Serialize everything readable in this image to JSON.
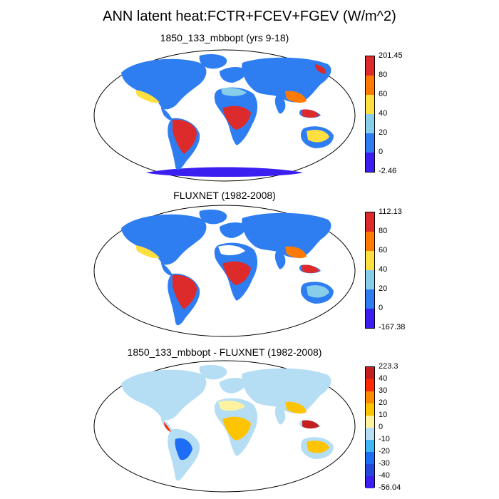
{
  "title": "ANN latent heat:FCTR+FCEV+FGEV (W/m^2)",
  "panels": [
    {
      "title": "1850_133_mbbopt (yrs 9-18)",
      "colorbar": {
        "labels": [
          "201.45",
          "80",
          "60",
          "40",
          "20",
          "0",
          "-2.46"
        ],
        "colors": [
          "#dd2a2a",
          "#ff7a00",
          "#ffe040",
          "#87ceeb",
          "#2e7ef2",
          "#3b1ff0"
        ]
      }
    },
    {
      "title": "FLUXNET (1982-2008)",
      "colorbar": {
        "labels": [
          "112.13",
          "80",
          "60",
          "40",
          "20",
          "0",
          "-167.38"
        ],
        "colors": [
          "#dd2a2a",
          "#ff7a00",
          "#ffe040",
          "#87ceeb",
          "#2e7ef2",
          "#3b1ff0"
        ]
      }
    },
    {
      "title": "1850_133_mbbopt - FLUXNET (1982-2008)",
      "colorbar": {
        "labels": [
          "223.3",
          "40",
          "30",
          "20",
          "10",
          "0",
          "-10",
          "-20",
          "-30",
          "-40",
          "-56.04"
        ],
        "colors": [
          "#c41e1e",
          "#ff2a00",
          "#ff8c00",
          "#ffc400",
          "#fff3a0",
          "#b5def5",
          "#41b6f5",
          "#1e6ef5",
          "#2448dc",
          "#3b1ff0"
        ]
      }
    }
  ]
}
